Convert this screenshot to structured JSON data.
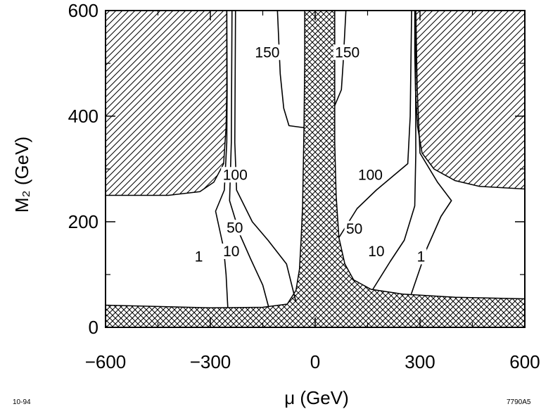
{
  "chart_data": {
    "type": "contour",
    "xlabel": "μ  (GeV)",
    "ylabel": "M₂  (GeV)",
    "xlim": [
      -600,
      600
    ],
    "ylim": [
      0,
      600
    ],
    "xticks": [
      -600,
      -300,
      0,
      300,
      600
    ],
    "xtick_labels": [
      "−600",
      "−300",
      "0",
      "300",
      "600"
    ],
    "yticks": [
      0,
      200,
      400,
      600
    ],
    "ytick_labels": [
      "0",
      "200",
      "400",
      "600"
    ],
    "excluded_regions": [
      {
        "pattern": "crosshatch",
        "points": [
          [
            -600,
            0
          ],
          [
            600,
            0
          ],
          [
            600,
            54
          ],
          [
            400,
            57
          ],
          [
            250,
            63
          ],
          [
            160,
            72
          ],
          [
            110,
            90
          ],
          [
            85,
            120
          ],
          [
            68,
            170
          ],
          [
            60,
            250
          ],
          [
            56,
            350
          ],
          [
            56,
            450
          ],
          [
            56,
            600
          ],
          [
            -30,
            600
          ],
          [
            -30,
            500
          ],
          [
            -32,
            380
          ],
          [
            -36,
            230
          ],
          [
            -40,
            170
          ],
          [
            -45,
            110
          ],
          [
            -55,
            70
          ],
          [
            -80,
            44
          ],
          [
            -150,
            38
          ],
          [
            -300,
            37
          ],
          [
            -600,
            42
          ]
        ]
      },
      {
        "pattern": "diagonal-hatch",
        "points": [
          [
            -600,
            600
          ],
          [
            -600,
            250
          ],
          [
            -420,
            250
          ],
          [
            -330,
            257
          ],
          [
            -290,
            275
          ],
          [
            -262,
            310
          ],
          [
            -255,
            380
          ],
          [
            -253,
            450
          ],
          [
            -253,
            600
          ]
        ]
      },
      {
        "pattern": "diagonal-hatch",
        "points": [
          [
            600,
            600
          ],
          [
            600,
            262
          ],
          [
            470,
            267
          ],
          [
            400,
            278
          ],
          [
            340,
            300
          ],
          [
            306,
            330
          ],
          [
            293,
            380
          ],
          [
            287,
            450
          ],
          [
            285,
            520
          ],
          [
            285,
            600
          ]
        ]
      }
    ],
    "contours": [
      {
        "label": "1",
        "side": "negative",
        "points": [
          [
            -250,
            37
          ],
          [
            -255,
            100
          ],
          [
            -262,
            150
          ],
          [
            -285,
            220
          ],
          [
            -260,
            260
          ],
          [
            -253,
            350
          ],
          [
            -252,
            450
          ],
          [
            -253,
            600
          ]
        ]
      },
      {
        "label": "10",
        "side": "negative",
        "points": [
          [
            -133,
            38
          ],
          [
            -150,
            80
          ],
          [
            -185,
            130
          ],
          [
            -215,
            175
          ],
          [
            -245,
            240
          ],
          [
            -240,
            350
          ],
          [
            -238,
            600
          ]
        ]
      },
      {
        "label": "50",
        "side": "negative",
        "points": [
          [
            -55,
            48
          ],
          [
            -82,
            120
          ],
          [
            -135,
            165
          ],
          [
            -180,
            200
          ],
          [
            -225,
            260
          ],
          [
            -230,
            350
          ],
          [
            -228,
            600
          ]
        ]
      },
      {
        "label": "150",
        "side": "negative",
        "points": [
          [
            -30,
            378
          ],
          [
            -75,
            382
          ],
          [
            -90,
            415
          ],
          [
            -100,
            480
          ],
          [
            -108,
            600
          ]
        ]
      },
      {
        "label": "150",
        "side": "positive",
        "points": [
          [
            56,
            420
          ],
          [
            75,
            450
          ],
          [
            80,
            500
          ],
          [
            88,
            600
          ]
        ]
      },
      {
        "label": "100",
        "side": "positive",
        "points": [
          [
            68,
            170
          ],
          [
            120,
            225
          ],
          [
            175,
            260
          ],
          [
            265,
            310
          ],
          [
            272,
            400
          ],
          [
            276,
            600
          ]
        ]
      },
      {
        "label": "10",
        "side": "positive",
        "points": [
          [
            165,
            72
          ],
          [
            215,
            125
          ],
          [
            255,
            165
          ],
          [
            285,
            230
          ],
          [
            288,
            330
          ],
          [
            287,
            600
          ]
        ]
      },
      {
        "label": "1",
        "side": "positive",
        "points": [
          [
            275,
            63
          ],
          [
            320,
            150
          ],
          [
            360,
            210
          ],
          [
            390,
            240
          ],
          [
            350,
            275
          ],
          [
            300,
            330
          ],
          [
            292,
            450
          ],
          [
            288,
            600
          ]
        ]
      }
    ],
    "contour_labels": [
      {
        "text": "1",
        "x": -333,
        "y": 130
      },
      {
        "text": "10",
        "x": -240,
        "y": 140
      },
      {
        "text": "50",
        "x": -230,
        "y": 185
      },
      {
        "text": "100",
        "x": -229,
        "y": 285
      },
      {
        "text": "150",
        "x": -137,
        "y": 517
      },
      {
        "text": "150",
        "x": 92,
        "y": 517
      },
      {
        "text": "100",
        "x": 158,
        "y": 285
      },
      {
        "text": "50",
        "x": 112,
        "y": 183
      },
      {
        "text": "10",
        "x": 175,
        "y": 140
      },
      {
        "text": "1",
        "x": 303,
        "y": 130
      }
    ]
  },
  "notes": {
    "left": "10-94",
    "right": "7790A5"
  }
}
